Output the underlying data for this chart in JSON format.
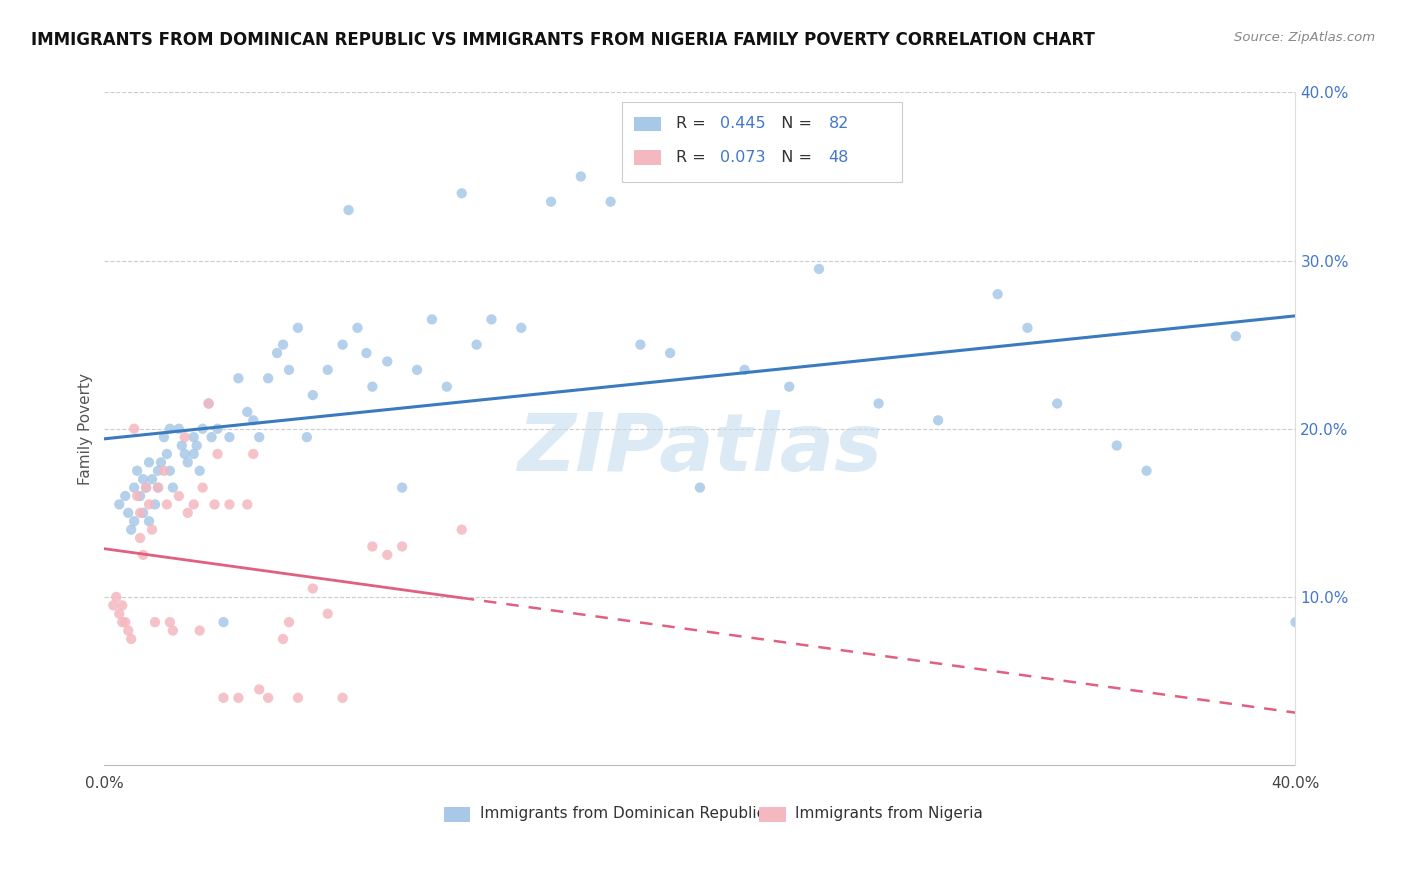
{
  "title": "IMMIGRANTS FROM DOMINICAN REPUBLIC VS IMMIGRANTS FROM NIGERIA FAMILY POVERTY CORRELATION CHART",
  "source": "Source: ZipAtlas.com",
  "ylabel": "Family Poverty",
  "xmin": 0.0,
  "xmax": 0.4,
  "ymin": 0.0,
  "ymax": 0.4,
  "yticks": [
    0.1,
    0.2,
    0.3,
    0.4
  ],
  "ytick_labels": [
    "10.0%",
    "20.0%",
    "30.0%",
    "40.0%"
  ],
  "color_dr": "#a8c8e8",
  "color_ng": "#f4b8c0",
  "color_dr_line": "#3a7bbf",
  "color_ng_line": "#e06080",
  "watermark": "ZIPatlas",
  "label_dr": "Immigrants from Dominican Republic",
  "label_ng": "Immigrants from Nigeria",
  "dr_x": [
    0.005,
    0.007,
    0.008,
    0.009,
    0.01,
    0.01,
    0.011,
    0.012,
    0.013,
    0.013,
    0.014,
    0.015,
    0.015,
    0.016,
    0.017,
    0.018,
    0.018,
    0.019,
    0.02,
    0.021,
    0.022,
    0.022,
    0.023,
    0.025,
    0.026,
    0.027,
    0.028,
    0.03,
    0.03,
    0.031,
    0.032,
    0.033,
    0.035,
    0.036,
    0.038,
    0.04,
    0.042,
    0.045,
    0.048,
    0.05,
    0.052,
    0.055,
    0.058,
    0.06,
    0.062,
    0.065,
    0.068,
    0.07,
    0.075,
    0.08,
    0.082,
    0.085,
    0.088,
    0.09,
    0.095,
    0.1,
    0.105,
    0.11,
    0.115,
    0.12,
    0.125,
    0.13,
    0.14,
    0.15,
    0.16,
    0.17,
    0.18,
    0.19,
    0.2,
    0.215,
    0.22,
    0.23,
    0.24,
    0.26,
    0.28,
    0.3,
    0.31,
    0.32,
    0.34,
    0.35,
    0.38,
    0.4
  ],
  "dr_y": [
    0.155,
    0.16,
    0.15,
    0.14,
    0.165,
    0.145,
    0.175,
    0.16,
    0.15,
    0.17,
    0.165,
    0.18,
    0.145,
    0.17,
    0.155,
    0.175,
    0.165,
    0.18,
    0.195,
    0.185,
    0.175,
    0.2,
    0.165,
    0.2,
    0.19,
    0.185,
    0.18,
    0.195,
    0.185,
    0.19,
    0.175,
    0.2,
    0.215,
    0.195,
    0.2,
    0.085,
    0.195,
    0.23,
    0.21,
    0.205,
    0.195,
    0.23,
    0.245,
    0.25,
    0.235,
    0.26,
    0.195,
    0.22,
    0.235,
    0.25,
    0.33,
    0.26,
    0.245,
    0.225,
    0.24,
    0.165,
    0.235,
    0.265,
    0.225,
    0.34,
    0.25,
    0.265,
    0.26,
    0.335,
    0.35,
    0.335,
    0.25,
    0.245,
    0.165,
    0.235,
    0.35,
    0.225,
    0.295,
    0.215,
    0.205,
    0.28,
    0.26,
    0.215,
    0.19,
    0.175,
    0.255,
    0.085
  ],
  "ng_x": [
    0.003,
    0.004,
    0.005,
    0.006,
    0.006,
    0.007,
    0.008,
    0.009,
    0.01,
    0.011,
    0.012,
    0.012,
    0.013,
    0.014,
    0.015,
    0.016,
    0.017,
    0.018,
    0.02,
    0.021,
    0.022,
    0.023,
    0.025,
    0.027,
    0.028,
    0.03,
    0.032,
    0.033,
    0.035,
    0.037,
    0.038,
    0.04,
    0.042,
    0.045,
    0.048,
    0.05,
    0.052,
    0.055,
    0.06,
    0.062,
    0.065,
    0.07,
    0.075,
    0.08,
    0.09,
    0.095,
    0.1,
    0.12
  ],
  "ng_y": [
    0.095,
    0.1,
    0.09,
    0.085,
    0.095,
    0.085,
    0.08,
    0.075,
    0.2,
    0.16,
    0.15,
    0.135,
    0.125,
    0.165,
    0.155,
    0.14,
    0.085,
    0.165,
    0.175,
    0.155,
    0.085,
    0.08,
    0.16,
    0.195,
    0.15,
    0.155,
    0.08,
    0.165,
    0.215,
    0.155,
    0.185,
    0.04,
    0.155,
    0.04,
    0.155,
    0.185,
    0.045,
    0.04,
    0.075,
    0.085,
    0.04,
    0.105,
    0.09,
    0.04,
    0.13,
    0.125,
    0.13,
    0.14
  ]
}
